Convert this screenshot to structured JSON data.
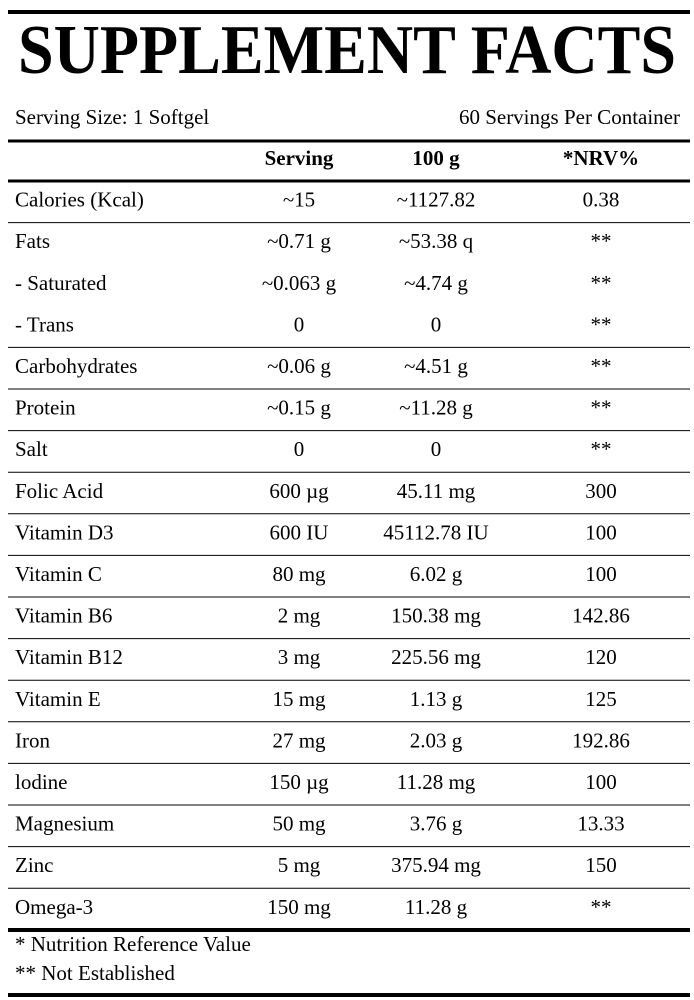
{
  "header": {
    "title": "SUPPLEMENT FACTS",
    "serving_size": "Serving Size: 1 Softgel",
    "servings_per_container": "60 Servings Per Container"
  },
  "table": {
    "columns": [
      "Serving",
      "100 g",
      "*NRV%"
    ],
    "rows": [
      [
        "Calories (Kcal)",
        "~15",
        "~1127.82",
        "0.38"
      ],
      [
        "Fats",
        "~0.71 g",
        "~53.38 q",
        "**"
      ],
      [
        "- Saturated",
        "~0.063 g",
        "~4.74 g",
        "**"
      ],
      [
        "- Trans",
        "0",
        "0",
        "**"
      ],
      [
        "Carbohydrates",
        "~0.06 g",
        "~4.51 g",
        "**"
      ],
      [
        "Protein",
        "~0.15 g",
        "~11.28 g",
        "**"
      ],
      [
        "Salt",
        "0",
        "0",
        "**"
      ],
      [
        "Folic Acid",
        "600 µg",
        "45.11 mg",
        "300"
      ],
      [
        "Vitamin D3",
        "600 IU",
        "45112.78 IU",
        "100"
      ],
      [
        "Vitamin C",
        "80 mg",
        "6.02 g",
        "100"
      ],
      [
        "Vitamin B6",
        "2 mg",
        "150.38 mg",
        "142.86"
      ],
      [
        "Vitamin B12",
        "3 mg",
        "225.56 mg",
        "120"
      ],
      [
        "Vitamin E",
        "15 mg",
        "1.13 g",
        "125"
      ],
      [
        "Iron",
        "27 mg",
        "2.03 g",
        "192.86"
      ],
      [
        "lodine",
        "150 µg",
        "11.28 mg",
        "100"
      ],
      [
        "Magnesium",
        "50 mg",
        "3.76 g",
        "13.33"
      ],
      [
        "Zinc",
        "5 mg",
        "375.94 mg",
        "150"
      ],
      [
        "Omega-3",
        "150 mg",
        "11.28 g",
        "**"
      ]
    ]
  },
  "footnotes": [
    "* Nutrition Reference Value",
    "** Not Established"
  ]
}
